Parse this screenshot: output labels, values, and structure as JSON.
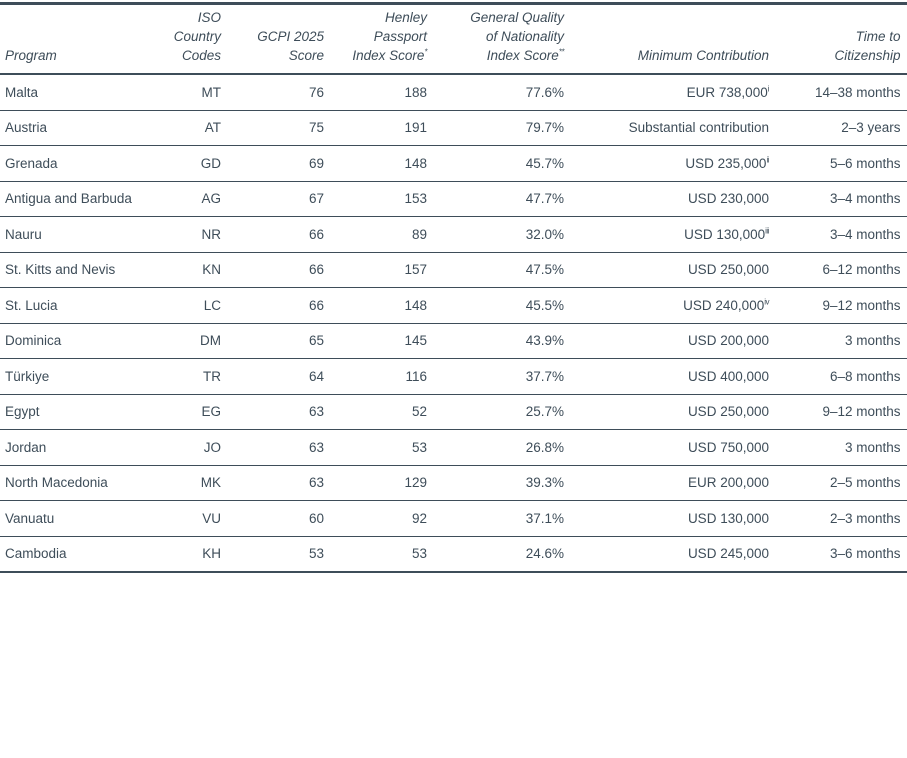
{
  "table": {
    "colors": {
      "text": "#3e4d59",
      "line": "#3e4d59",
      "background": "#ffffff"
    },
    "columns": [
      {
        "key": "program",
        "label": "Program",
        "sup": ""
      },
      {
        "key": "iso",
        "label": "ISO\nCountry\nCodes",
        "sup": ""
      },
      {
        "key": "gcpi",
        "label": "GCPI 2025\nScore",
        "sup": ""
      },
      {
        "key": "henley",
        "label": "Henley\nPassport\nIndex Score",
        "sup": "*"
      },
      {
        "key": "gqni",
        "label": "General Quality\nof Nationality\nIndex Score",
        "sup": "**"
      },
      {
        "key": "contribution",
        "label": "Minimum Contribution",
        "sup": ""
      },
      {
        "key": "time",
        "label": "Time to\nCitizenship",
        "sup": ""
      }
    ],
    "rows": [
      {
        "program": "Malta",
        "iso": "MT",
        "gcpi": "76",
        "henley": "188",
        "gqni": "77.6%",
        "contribution": "EUR 738,000",
        "contribution_sup": "i",
        "time": "14–38 months"
      },
      {
        "program": "Austria",
        "iso": "AT",
        "gcpi": "75",
        "henley": "191",
        "gqni": "79.7%",
        "contribution": "Substantial contribution",
        "contribution_sup": "",
        "time": "2–3 years"
      },
      {
        "program": "Grenada",
        "iso": "GD",
        "gcpi": "69",
        "henley": "148",
        "gqni": "45.7%",
        "contribution": "USD 235,000",
        "contribution_sup": "ii",
        "time": "5–6 months"
      },
      {
        "program": "Antigua and Barbuda",
        "iso": "AG",
        "gcpi": "67",
        "henley": "153",
        "gqni": "47.7%",
        "contribution": "USD 230,000",
        "contribution_sup": "",
        "time": "3–4 months"
      },
      {
        "program": "Nauru",
        "iso": "NR",
        "gcpi": "66",
        "henley": "89",
        "gqni": "32.0%",
        "contribution": "USD 130,000",
        "contribution_sup": "iii",
        "time": "3–4 months"
      },
      {
        "program": "St. Kitts and Nevis",
        "iso": "KN",
        "gcpi": "66",
        "henley": "157",
        "gqni": "47.5%",
        "contribution": "USD 250,000",
        "contribution_sup": "",
        "time": "6–12 months"
      },
      {
        "program": "St. Lucia",
        "iso": "LC",
        "gcpi": "66",
        "henley": "148",
        "gqni": "45.5%",
        "contribution": "USD 240,000",
        "contribution_sup": "iv",
        "time": "9–12 months"
      },
      {
        "program": "Dominica",
        "iso": "DM",
        "gcpi": "65",
        "henley": "145",
        "gqni": "43.9%",
        "contribution": "USD 200,000",
        "contribution_sup": "",
        "time": "3 months"
      },
      {
        "program": "Türkiye",
        "iso": "TR",
        "gcpi": "64",
        "henley": "116",
        "gqni": "37.7%",
        "contribution": "USD 400,000",
        "contribution_sup": "",
        "time": "6–8 months"
      },
      {
        "program": "Egypt",
        "iso": "EG",
        "gcpi": "63",
        "henley": "52",
        "gqni": "25.7%",
        "contribution": "USD 250,000",
        "contribution_sup": "",
        "time": "9–12 months"
      },
      {
        "program": "Jordan",
        "iso": "JO",
        "gcpi": "63",
        "henley": "53",
        "gqni": "26.8%",
        "contribution": "USD 750,000",
        "contribution_sup": "",
        "time": "3 months"
      },
      {
        "program": "North Macedonia",
        "iso": "MK",
        "gcpi": "63",
        "henley": "129",
        "gqni": "39.3%",
        "contribution": "EUR 200,000",
        "contribution_sup": "",
        "time": "2–5 months"
      },
      {
        "program": "Vanuatu",
        "iso": "VU",
        "gcpi": "60",
        "henley": "92",
        "gqni": "37.1%",
        "contribution": "USD 130,000",
        "contribution_sup": "",
        "time": "2–3 months"
      },
      {
        "program": "Cambodia",
        "iso": "KH",
        "gcpi": "53",
        "henley": "53",
        "gqni": "24.6%",
        "contribution": "USD 245,000",
        "contribution_sup": "",
        "time": "3–6 months"
      }
    ]
  }
}
